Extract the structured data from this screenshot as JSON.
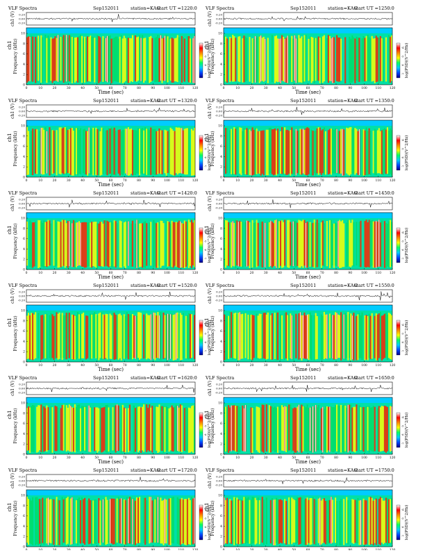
{
  "common": {
    "title": "VLF Spectra",
    "date": "Sep152011",
    "station": "station=KAG",
    "xlabel": "Time (sec)",
    "ylabel_freq": "Frequency (kHz)",
    "ylabel_amp": "ch1 (V)",
    "ylabel_ch": "ch1",
    "colorbar_label": "log(PSD)(V^2/Hz)",
    "amp_ticks": [
      "0.20",
      "0.00",
      "-0.20"
    ],
    "freq_ticks": [
      "0",
      "2",
      "4",
      "6",
      "8",
      "10"
    ],
    "x_ticks": [
      "0",
      "10",
      "20",
      "30",
      "40",
      "50",
      "60",
      "70",
      "80",
      "90",
      "100",
      "110",
      "120"
    ],
    "colorbar_ticks": [
      "-4",
      "-5",
      "-6",
      "-7"
    ]
  },
  "colors": {
    "background": "#00e0a8",
    "top_band": "#00ccff",
    "low": "#00dd66",
    "mid": "#ffff00",
    "high": "#ff2200",
    "peak": "#ffffff",
    "colorbar": [
      "#ffffff",
      "#ff0000",
      "#ff8800",
      "#ffff00",
      "#00ff66",
      "#00ccff",
      "#0044ff",
      "#000088"
    ]
  },
  "chart_data": [
    {
      "type": "heatmap",
      "title": "VLF Spectra",
      "start_ut": "start UT =1220:0",
      "xlim": [
        0,
        120
      ],
      "ylim_freq_khz": [
        0,
        10
      ],
      "ylim_amp_v": [
        -0.2,
        0.2
      ]
    },
    {
      "type": "heatmap",
      "title": "VLF Spectra",
      "start_ut": "start UT =1250:0",
      "xlim": [
        0,
        120
      ],
      "ylim_freq_khz": [
        0,
        10
      ],
      "ylim_amp_v": [
        -0.2,
        0.2
      ]
    },
    {
      "type": "heatmap",
      "title": "VLF Spectra",
      "start_ut": "start UT =1320:0",
      "xlim": [
        0,
        120
      ],
      "ylim_freq_khz": [
        0,
        10
      ],
      "ylim_amp_v": [
        -0.2,
        0.2
      ]
    },
    {
      "type": "heatmap",
      "title": "VLF Spectra",
      "start_ut": "start UT =1350:0",
      "xlim": [
        0,
        120
      ],
      "ylim_freq_khz": [
        0,
        10
      ],
      "ylim_amp_v": [
        -0.2,
        0.2
      ]
    },
    {
      "type": "heatmap",
      "title": "VLF Spectra",
      "start_ut": "start UT =1420:0",
      "xlim": [
        0,
        120
      ],
      "ylim_freq_khz": [
        0,
        10
      ],
      "ylim_amp_v": [
        -0.2,
        0.2
      ]
    },
    {
      "type": "heatmap",
      "title": "VLF Spectra",
      "start_ut": "start UT =1450:0",
      "xlim": [
        0,
        120
      ],
      "ylim_freq_khz": [
        0,
        10
      ],
      "ylim_amp_v": [
        -0.2,
        0.2
      ]
    },
    {
      "type": "heatmap",
      "title": "VLF Spectra",
      "start_ut": "start UT =1520:0",
      "xlim": [
        0,
        120
      ],
      "ylim_freq_khz": [
        0,
        10
      ],
      "ylim_amp_v": [
        -0.2,
        0.2
      ]
    },
    {
      "type": "heatmap",
      "title": "VLF Spectra",
      "start_ut": "start UT =1550:0",
      "xlim": [
        0,
        120
      ],
      "ylim_freq_khz": [
        0,
        10
      ],
      "ylim_amp_v": [
        -0.2,
        0.2
      ]
    },
    {
      "type": "heatmap",
      "title": "VLF Spectra",
      "start_ut": "start UT =1620:0",
      "xlim": [
        0,
        120
      ],
      "ylim_freq_khz": [
        0,
        10
      ],
      "ylim_amp_v": [
        -0.2,
        0.2
      ]
    },
    {
      "type": "heatmap",
      "title": "VLF Spectra",
      "start_ut": "start UT =1650:0",
      "xlim": [
        0,
        120
      ],
      "ylim_freq_khz": [
        0,
        10
      ],
      "ylim_amp_v": [
        -0.2,
        0.2
      ]
    },
    {
      "type": "heatmap",
      "title": "VLF Spectra",
      "start_ut": "start UT =1720:0",
      "xlim": [
        0,
        120
      ],
      "ylim_freq_khz": [
        0,
        10
      ],
      "ylim_amp_v": [
        -0.2,
        0.2
      ]
    },
    {
      "type": "heatmap",
      "title": "VLF Spectra",
      "start_ut": "start UT =1750:0",
      "xlim": [
        0,
        120
      ],
      "ylim_freq_khz": [
        0,
        10
      ],
      "ylim_amp_v": [
        -0.2,
        0.2
      ]
    }
  ]
}
